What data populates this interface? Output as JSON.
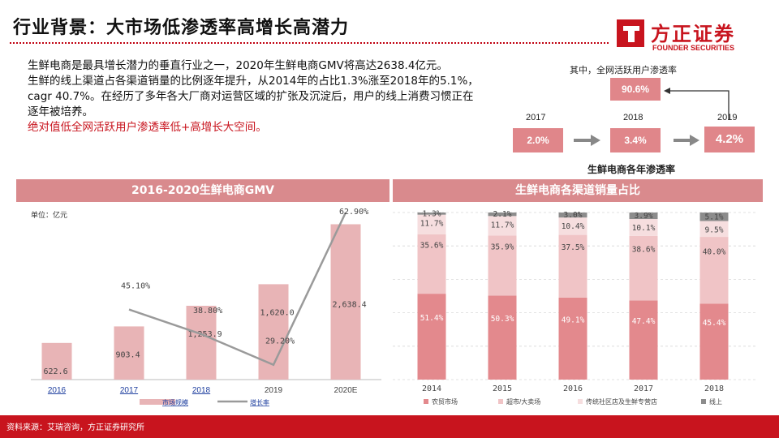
{
  "header": {
    "title": "行业背景：大市场低渗透率高增长高潜力"
  },
  "logo": {
    "cn": "方正证券",
    "en": "FOUNDER SECURITIES"
  },
  "intro": {
    "line1": "生鲜电商是最具增长潜力的垂直行业之一，2020年生鲜电商GMV将高达2638.4亿元。",
    "line2": "生鲜的线上渠道占各渠道销量的比例逐年提升，从2014年的占比1.3%涨至2018年的5.1%，cagr 40.7%。在经历了多年各大厂商对运营区域的扩张及沉淀后，用户的线上消费习惯正在逐年被培养。",
    "line3": "绝对值低全网活跃用户渗透率低+高增长大空间。"
  },
  "penetration": {
    "caption": "其中，全网活跃用户渗透率",
    "subtitle": "生鲜电商各年渗透率",
    "years": [
      "2017",
      "2018",
      "2019"
    ],
    "values": [
      "2.0%",
      "3.4%",
      "4.2%"
    ],
    "highlight": "90.6%"
  },
  "colors": {
    "brand": "#c8141e",
    "band": "#d98a8d",
    "bar": "#e8b4b6",
    "line": "#9a9a9a",
    "stack": [
      "#e3898d",
      "#f0c4c6",
      "#f6dedf",
      "#8c8c8c"
    ]
  },
  "charts": {
    "left": {
      "title": "2016-2020生鲜电商GMV",
      "unit": "单位：亿元"
    },
    "right": {
      "title": "生鲜电商各渠道销量占比"
    }
  },
  "chart_data": [
    {
      "type": "bar",
      "title": "2016-2020生鲜电商GMV",
      "ylabel": "单位：亿元",
      "categories": [
        "2016",
        "2017",
        "2018",
        "2019",
        "2020E"
      ],
      "series": [
        {
          "name": "市场规模",
          "values": [
            622.6,
            903.4,
            1253.9,
            1620.0,
            2638.4
          ],
          "labels": [
            "622.6",
            "903.4",
            "1,253.9",
            "1,620.0",
            "2,638.4"
          ]
        },
        {
          "name": "增长率",
          "type": "line",
          "values": [
            null,
            45.1,
            38.8,
            29.2,
            62.9
          ],
          "labels": [
            "",
            "45.10%",
            "38.80%",
            "29.20%",
            "62.90%"
          ]
        }
      ],
      "ylim": [
        0,
        3000
      ],
      "grid": false,
      "legend": "bottom"
    },
    {
      "type": "bar",
      "stacked": true,
      "title": "生鲜电商各渠道销量占比",
      "categories": [
        "2014",
        "2015",
        "2016",
        "2017",
        "2018"
      ],
      "series": [
        {
          "name": "农贸市场",
          "values": [
            51.4,
            50.3,
            49.1,
            47.4,
            45.4
          ]
        },
        {
          "name": "超市/大卖场",
          "values": [
            35.6,
            35.9,
            37.5,
            38.6,
            40.0
          ]
        },
        {
          "name": "传统社区店及生鲜专营店",
          "values": [
            11.7,
            11.7,
            10.4,
            10.1,
            9.5
          ]
        },
        {
          "name": "线上",
          "values": [
            1.3,
            2.1,
            3.0,
            3.9,
            5.1
          ]
        }
      ],
      "ylim": [
        0,
        100
      ],
      "grid": true,
      "legend": "bottom"
    }
  ],
  "footer": {
    "source": "资料来源：艾瑞咨询，方正证券研究所"
  }
}
